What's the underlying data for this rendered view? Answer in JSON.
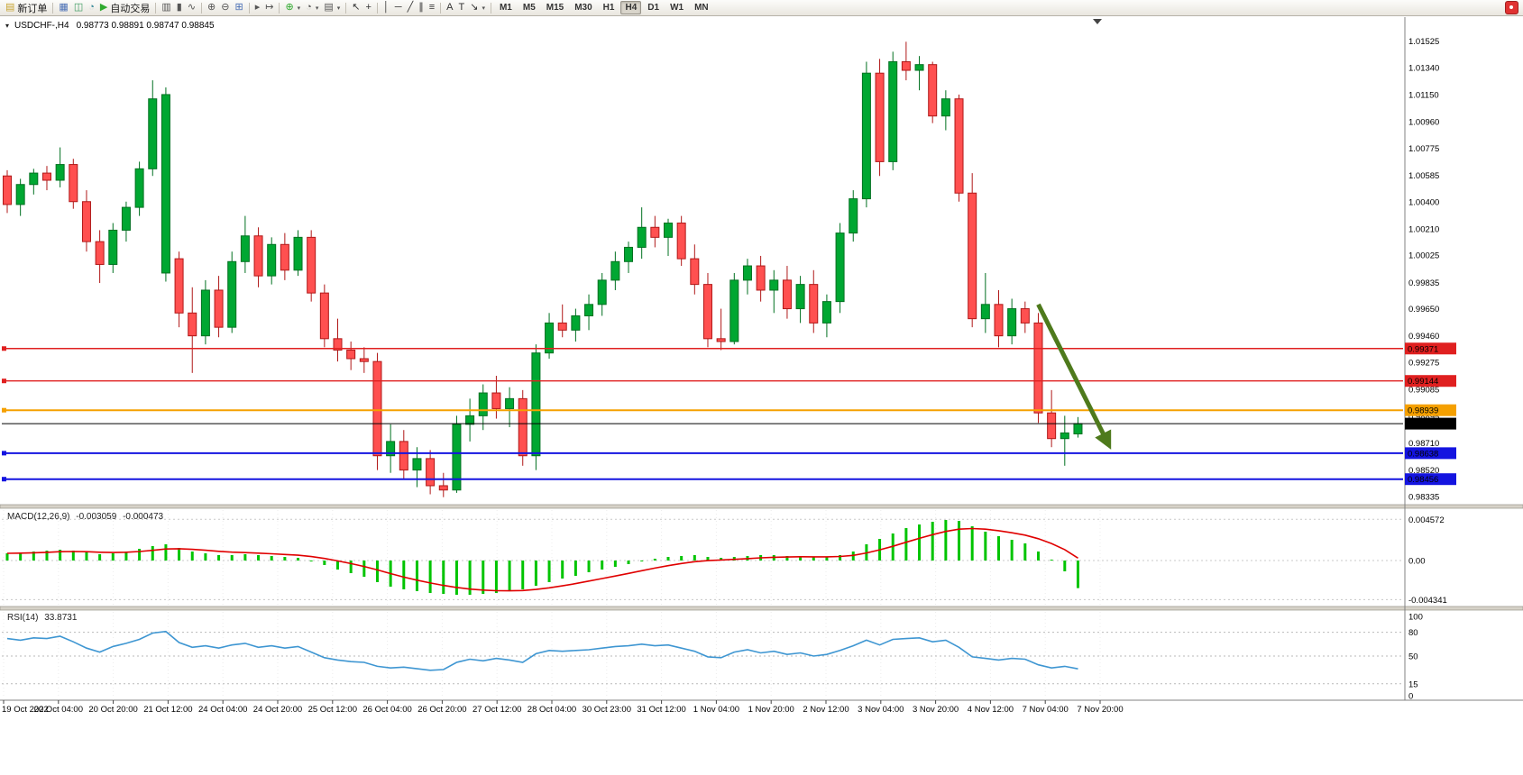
{
  "toolbar": {
    "new_order_label": "新订单",
    "auto_trading_label": "自动交易",
    "active_timeframe": "H4",
    "timeframes": [
      "M1",
      "M5",
      "M15",
      "M30",
      "H1",
      "H4",
      "D1",
      "W1",
      "MN"
    ],
    "items": [
      {
        "name": "new-order",
        "glyph": "▤",
        "color": "#c8a430",
        "label": "新订单"
      },
      {
        "sep": true
      },
      {
        "name": "charts",
        "glyph": "▦",
        "color": "#4a6fb5"
      },
      {
        "name": "market-watch",
        "glyph": "◫",
        "color": "#3a9a5f"
      },
      {
        "name": "navigator",
        "glyph": "◔",
        "color": "#3a8a9a"
      },
      {
        "name": "auto-trading",
        "glyph": "▶",
        "color": "#2faa2f",
        "label": "自动交易"
      },
      {
        "sep": true
      },
      {
        "name": "bar-chart-type",
        "glyph": "▥",
        "color": "#555555"
      },
      {
        "name": "candle-chart-type",
        "glyph": "▮",
        "color": "#555555"
      },
      {
        "name": "line-chart-type",
        "glyph": "∿",
        "color": "#555555"
      },
      {
        "sep": true
      },
      {
        "name": "zoom-in",
        "glyph": "⊕",
        "color": "#555555"
      },
      {
        "name": "zoom-out",
        "glyph": "⊖",
        "color": "#555555"
      },
      {
        "name": "tile-windows",
        "glyph": "⊞",
        "color": "#4a6fb5"
      },
      {
        "sep": true
      },
      {
        "name": "auto-scroll",
        "glyph": "▸",
        "color": "#555555"
      },
      {
        "name": "chart-shift",
        "glyph": "↦",
        "color": "#555555"
      },
      {
        "sep": true
      },
      {
        "name": "indicators",
        "glyph": "⊕",
        "color": "#2faa2f",
        "dropdown": true
      },
      {
        "name": "periods",
        "glyph": "◔",
        "color": "#555555",
        "dropdown": true
      },
      {
        "name": "templates",
        "glyph": "▤",
        "color": "#555555",
        "dropdown": true
      },
      {
        "sep": true
      },
      {
        "name": "cursor",
        "glyph": "↖",
        "color": "#333333"
      },
      {
        "name": "crosshair",
        "glyph": "+",
        "color": "#333333"
      },
      {
        "sep": true
      },
      {
        "name": "vertical-line",
        "glyph": "│",
        "color": "#333333"
      },
      {
        "name": "horizontal-line",
        "glyph": "─",
        "color": "#333333"
      },
      {
        "name": "trendline",
        "glyph": "╱",
        "color": "#333333"
      },
      {
        "name": "channel",
        "glyph": "∥",
        "color": "#333333"
      },
      {
        "name": "fibonacci",
        "glyph": "≡",
        "color": "#333333"
      },
      {
        "sep": true
      },
      {
        "name": "text",
        "glyph": "A",
        "color": "#333333"
      },
      {
        "name": "text-label",
        "glyph": "T",
        "color": "#333333"
      },
      {
        "name": "arrows",
        "glyph": "↘",
        "color": "#333333",
        "dropdown": true
      },
      {
        "sep": true
      }
    ]
  },
  "header": {
    "menu_glyph": "▾",
    "symbol": "USDCHF-,H4",
    "ohlc": "0.98773 0.98891 0.98747 0.98845"
  },
  "colors": {
    "bull": "#00a732",
    "bull_border": "#007020",
    "bear": "#ff5050",
    "bear_border": "#b01818",
    "macd_hist": "#00c400",
    "macd_signal": "#e00000",
    "rsi_line": "#3e96d2"
  },
  "chart_data": {
    "type": "candlestick",
    "symbol": "USDCHF",
    "timeframe": "H4",
    "price_axis_labels": [
      "1.01525",
      "1.01340",
      "1.01150",
      "1.00960",
      "1.00775",
      "1.00585",
      "1.00400",
      "1.00210",
      "1.00025",
      "0.99835",
      "0.99650",
      "0.99460",
      "0.99275",
      "0.99085",
      "0.98895",
      "0.98710",
      "0.98520",
      "0.98335"
    ],
    "time_labels": [
      "19 Oct 2022",
      "20 Oct 04:00",
      "20 Oct 20:00",
      "21 Oct 12:00",
      "24 Oct 04:00",
      "24 Oct 20:00",
      "25 Oct 12:00",
      "26 Oct 04:00",
      "26 Oct 20:00",
      "27 Oct 12:00",
      "28 Oct 04:00",
      "30 Oct 23:00",
      "31 Oct 12:00",
      "1 Nov 04:00",
      "1 Nov 20:00",
      "2 Nov 12:00",
      "3 Nov 04:00",
      "3 Nov 20:00",
      "4 Nov 12:00",
      "7 Nov 04:00",
      "7 Nov 20:00"
    ],
    "candles": [
      [
        1.0058,
        1.0062,
        1.0032,
        1.0038
      ],
      [
        1.0038,
        1.0056,
        1.003,
        1.0052
      ],
      [
        1.0052,
        1.0063,
        1.0045,
        1.006
      ],
      [
        1.006,
        1.0065,
        1.0048,
        1.0055
      ],
      [
        1.0055,
        1.0078,
        1.005,
        1.0066
      ],
      [
        1.0066,
        1.007,
        1.0035,
        1.004
      ],
      [
        1.004,
        1.0048,
        1.0005,
        1.0012
      ],
      [
        1.0012,
        1.002,
        0.9983,
        0.9996
      ],
      [
        0.9996,
        1.0025,
        0.999,
        1.002
      ],
      [
        1.002,
        1.004,
        1.0012,
        1.0036
      ],
      [
        1.0036,
        1.0068,
        1.003,
        1.0063
      ],
      [
        1.0063,
        1.0125,
        1.0058,
        1.0112
      ],
      [
        0.999,
        1.012,
        0.9984,
        1.0115
      ],
      [
        1.0,
        1.0005,
        0.9952,
        0.9962
      ],
      [
        0.9962,
        0.998,
        0.992,
        0.9946
      ],
      [
        0.9946,
        0.9985,
        0.994,
        0.9978
      ],
      [
        0.9978,
        0.9988,
        0.9945,
        0.9952
      ],
      [
        0.9952,
        1.0005,
        0.9948,
        0.9998
      ],
      [
        0.9998,
        1.003,
        0.999,
        1.0016
      ],
      [
        1.0016,
        1.0022,
        0.998,
        0.9988
      ],
      [
        0.9988,
        1.0015,
        0.9982,
        1.001
      ],
      [
        1.001,
        1.0018,
        0.9985,
        0.9992
      ],
      [
        0.9992,
        1.002,
        0.9988,
        1.0015
      ],
      [
        1.0015,
        1.002,
        0.997,
        0.9976
      ],
      [
        0.9976,
        0.9982,
        0.9938,
        0.9944
      ],
      [
        0.9944,
        0.9958,
        0.9928,
        0.9936
      ],
      [
        0.9936,
        0.9942,
        0.9922,
        0.993
      ],
      [
        0.993,
        0.9938,
        0.992,
        0.9928
      ],
      [
        0.9928,
        0.9934,
        0.9852,
        0.9862
      ],
      [
        0.9862,
        0.9884,
        0.985,
        0.9872
      ],
      [
        0.9872,
        0.988,
        0.9846,
        0.9852
      ],
      [
        0.9852,
        0.9868,
        0.984,
        0.986
      ],
      [
        0.986,
        0.9866,
        0.9835,
        0.9841
      ],
      [
        0.9841,
        0.985,
        0.9833,
        0.9838
      ],
      [
        0.9838,
        0.989,
        0.9836,
        0.9884
      ],
      [
        0.9884,
        0.9902,
        0.9872,
        0.989
      ],
      [
        0.989,
        0.9912,
        0.988,
        0.9906
      ],
      [
        0.9906,
        0.9918,
        0.9888,
        0.9895
      ],
      [
        0.9895,
        0.991,
        0.9882,
        0.9902
      ],
      [
        0.9902,
        0.9908,
        0.9855,
        0.9862
      ],
      [
        0.9862,
        0.994,
        0.9852,
        0.9934
      ],
      [
        0.9934,
        0.9962,
        0.993,
        0.9955
      ],
      [
        0.9955,
        0.9968,
        0.9945,
        0.995
      ],
      [
        0.995,
        0.9965,
        0.9942,
        0.996
      ],
      [
        0.996,
        0.9975,
        0.995,
        0.9968
      ],
      [
        0.9968,
        0.999,
        0.996,
        0.9985
      ],
      [
        0.9985,
        1.0005,
        0.9978,
        0.9998
      ],
      [
        0.9998,
        1.0012,
        0.999,
        1.0008
      ],
      [
        1.0008,
        1.0036,
        1.0,
        1.0022
      ],
      [
        1.0022,
        1.003,
        1.0008,
        1.0015
      ],
      [
        1.0015,
        1.0028,
        1.0002,
        1.0025
      ],
      [
        1.0025,
        1.003,
        0.9995,
        1.0
      ],
      [
        1.0,
        1.001,
        0.9975,
        0.9982
      ],
      [
        0.9982,
        0.999,
        0.9938,
        0.9944
      ],
      [
        0.9944,
        0.9965,
        0.9936,
        0.9942
      ],
      [
        0.9942,
        0.999,
        0.994,
        0.9985
      ],
      [
        0.9985,
        1.0,
        0.9975,
        0.9995
      ],
      [
        0.9995,
        1.0002,
        0.997,
        0.9978
      ],
      [
        0.9978,
        0.9992,
        0.9962,
        0.9985
      ],
      [
        0.9985,
        0.9995,
        0.9958,
        0.9965
      ],
      [
        0.9965,
        0.9988,
        0.9955,
        0.9982
      ],
      [
        0.9982,
        0.9992,
        0.9948,
        0.9955
      ],
      [
        0.9955,
        0.9975,
        0.9945,
        0.997
      ],
      [
        0.997,
        1.0025,
        0.9962,
        1.0018
      ],
      [
        1.0018,
        1.0048,
        1.0012,
        1.0042
      ],
      [
        1.0042,
        1.0138,
        1.0036,
        1.013
      ],
      [
        1.013,
        1.014,
        1.0058,
        1.0068
      ],
      [
        1.0068,
        1.0145,
        1.0062,
        1.0138
      ],
      [
        1.0138,
        1.0152,
        1.0125,
        1.0132
      ],
      [
        1.0132,
        1.0142,
        1.0118,
        1.0136
      ],
      [
        1.0136,
        1.0138,
        1.0095,
        1.01
      ],
      [
        1.01,
        1.0118,
        1.009,
        1.0112
      ],
      [
        1.0112,
        1.0115,
        1.004,
        1.0046
      ],
      [
        1.0046,
        1.006,
        0.9952,
        0.9958
      ],
      [
        0.9958,
        0.999,
        0.9948,
        0.9968
      ],
      [
        0.9968,
        0.9978,
        0.9938,
        0.9946
      ],
      [
        0.9946,
        0.9972,
        0.994,
        0.9965
      ],
      [
        0.9965,
        0.997,
        0.9948,
        0.9955
      ],
      [
        0.9955,
        0.9962,
        0.9885,
        0.9892
      ],
      [
        0.9892,
        0.9908,
        0.9868,
        0.9874
      ],
      [
        0.9874,
        0.989,
        0.9855,
        0.9878
      ],
      [
        0.98773,
        0.98891,
        0.98747,
        0.98845
      ]
    ],
    "horizontal_lines": [
      {
        "name": "resistance-line-1",
        "price": 0.99371,
        "label": "0.99371",
        "color": "#e02020",
        "width": 1.4
      },
      {
        "name": "resistance-line-2",
        "price": 0.99144,
        "label": "0.99144",
        "color": "#e02020",
        "width": 1.4
      },
      {
        "name": "support-line-orange",
        "price": 0.98939,
        "label": "0.98939",
        "color": "#f5a000",
        "width": 2
      },
      {
        "name": "bid-price-line",
        "price": 0.98845,
        "label": "0.98845",
        "color": "#000000",
        "width": 1
      },
      {
        "name": "support-line-blue-1",
        "price": 0.98638,
        "label": "0.98638",
        "color": "#1414e0",
        "width": 2
      },
      {
        "name": "support-line-blue-2",
        "price": 0.98456,
        "label": "0.98456",
        "color": "#1414e0",
        "width": 2
      }
    ],
    "trend_arrow": {
      "from_index": 78,
      "from_price": 0.9968,
      "to_index": 83.2,
      "to_price": 0.9872,
      "color": "#4e7a1c",
      "width": 5
    },
    "macd": {
      "title": "MACD(12,26,9)",
      "main_value": "-0.003059",
      "signal_value": "-0.000473",
      "axis_labels": [
        "0.004572",
        "0.00",
        "-0.004341"
      ],
      "axis_values": [
        0.004572,
        0,
        -0.004341
      ],
      "range": [
        -0.0046,
        0.0048
      ],
      "values": [
        0.0008,
        0.0009,
        0.001,
        0.0011,
        0.0012,
        0.0011,
        0.0009,
        0.0007,
        0.0008,
        0.001,
        0.0013,
        0.0016,
        0.0018,
        0.0014,
        0.001,
        0.0008,
        0.0006,
        0.0006,
        0.0007,
        0.0006,
        0.0005,
        0.0004,
        0.0003,
        -0.0001,
        -0.0005,
        -0.001,
        -0.0014,
        -0.0018,
        -0.0024,
        -0.0029,
        -0.0032,
        -0.0034,
        -0.0036,
        -0.0037,
        -0.0038,
        -0.0038,
        -0.0037,
        -0.0036,
        -0.0034,
        -0.0032,
        -0.0028,
        -0.0024,
        -0.002,
        -0.0017,
        -0.0013,
        -0.001,
        -0.0007,
        -0.0004,
        -0.0001,
        0.0002,
        0.0004,
        0.0005,
        0.0006,
        0.0004,
        0.0003,
        0.0004,
        0.0005,
        0.0006,
        0.0006,
        0.0005,
        0.0005,
        0.0004,
        0.0004,
        0.0006,
        0.001,
        0.0018,
        0.0024,
        0.003,
        0.0036,
        0.004,
        0.0043,
        0.0045,
        0.0044,
        0.0038,
        0.0032,
        0.0027,
        0.0023,
        0.0019,
        0.001,
        0.0,
        -0.0012,
        -0.003059
      ]
    },
    "rsi": {
      "title": "RSI(14)",
      "value": "33.8731",
      "axis_labels": [
        "100",
        "80",
        "50",
        "15",
        "0"
      ],
      "axis_values": [
        100,
        80,
        50,
        15,
        0
      ],
      "levels": [
        80,
        50,
        15
      ],
      "range": [
        0,
        100
      ],
      "values": [
        72,
        70,
        73,
        72,
        75,
        68,
        60,
        55,
        62,
        66,
        71,
        79,
        81,
        67,
        61,
        63,
        60,
        64,
        66,
        61,
        63,
        60,
        62,
        55,
        48,
        45,
        43,
        42,
        37,
        35,
        36,
        34,
        32,
        33,
        42,
        46,
        44,
        47,
        45,
        42,
        53,
        57,
        56,
        57,
        58,
        60,
        62,
        63,
        65,
        63,
        64,
        60,
        56,
        49,
        48,
        55,
        58,
        54,
        56,
        52,
        54,
        50,
        52,
        57,
        63,
        70,
        64,
        71,
        72,
        73,
        68,
        70,
        61,
        49,
        47,
        45,
        47,
        46,
        39,
        35,
        37,
        33.8731
      ]
    }
  }
}
